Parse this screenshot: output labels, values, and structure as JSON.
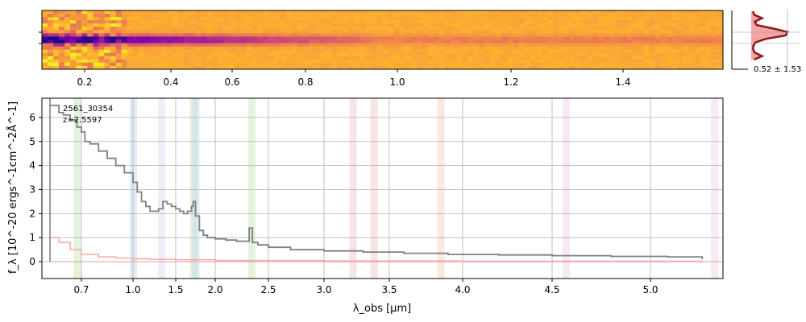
{
  "chart_data": [
    {
      "type": "heatmap",
      "name": "2d-spectrum",
      "colormap": "plasma",
      "x_unit_ticks": [
        "0.2",
        "0.4",
        "0.6",
        "0.8",
        "1.0",
        "1.2",
        "1.4"
      ],
      "x_tick_values": [
        0.2,
        0.4,
        0.6,
        0.8,
        1.0,
        1.2,
        1.4
      ]
    },
    {
      "type": "line",
      "name": "spatial-profile",
      "annotation": "0.52 ± 1.53",
      "fill_color": "#f4a6a6",
      "line_color": "#8b1a1a",
      "profile": [
        0.05,
        0.08,
        0.3,
        0.1,
        0.15,
        0.6,
        1.0,
        0.95,
        0.4,
        0.12,
        0.06,
        0.05,
        0.1,
        0.3,
        0.08
      ]
    },
    {
      "type": "line",
      "name": "1d-spectrum",
      "object_id": "2561_30354",
      "redshift_label": "z=2.5597",
      "xlabel": "λ_obs [μm]",
      "ylabel": "f_λ [10^-20 ergs^-1cm^-2Å^-1]",
      "ylim": [
        -0.7,
        6.8
      ],
      "x_tick_labels": [
        "0.7",
        "1.0",
        "1.5",
        "2.0",
        "2.5",
        "3.0",
        "3.5",
        "4.0",
        "4.5",
        "5.0"
      ],
      "x_tick_values": [
        0.7,
        1.0,
        1.5,
        2.0,
        2.5,
        3.0,
        3.5,
        4.0,
        4.5,
        5.0
      ],
      "y_tick_values": [
        0,
        1,
        2,
        3,
        4,
        5,
        6
      ],
      "y_tick_labels": [
        "0",
        "1",
        "2",
        "3",
        "4",
        "5",
        "6"
      ],
      "grid": true,
      "series": [
        {
          "role": "flux",
          "color": "#808080",
          "x": [
            0.56,
            0.6,
            0.62,
            0.65,
            0.68,
            0.7,
            0.72,
            0.75,
            0.8,
            0.85,
            0.9,
            0.95,
            1.0,
            1.05,
            1.1,
            1.15,
            1.2,
            1.25,
            1.3,
            1.35,
            1.4,
            1.45,
            1.5,
            1.55,
            1.6,
            1.65,
            1.7,
            1.72,
            1.75,
            1.8,
            1.85,
            1.9,
            2.0,
            2.1,
            2.2,
            2.3,
            2.32,
            2.35,
            2.4,
            2.5,
            2.7,
            3.0,
            3.3,
            3.6,
            3.9,
            4.2,
            4.5,
            4.8,
            5.1,
            5.3
          ],
          "y": [
            6.5,
            6.2,
            6.1,
            5.9,
            5.6,
            5.4,
            5.0,
            4.9,
            4.6,
            4.3,
            4.0,
            3.7,
            3.3,
            2.9,
            2.5,
            2.3,
            2.1,
            2.1,
            2.2,
            2.5,
            2.4,
            2.3,
            2.2,
            2.1,
            2.0,
            2.1,
            2.3,
            2.5,
            1.9,
            1.3,
            1.1,
            1.0,
            0.95,
            0.9,
            0.85,
            0.85,
            1.4,
            0.8,
            0.7,
            0.6,
            0.5,
            0.45,
            0.4,
            0.35,
            0.3,
            0.28,
            0.25,
            0.22,
            0.2,
            0.1
          ]
        },
        {
          "role": "error",
          "color": "#f2a3a3",
          "x": [
            0.56,
            0.6,
            0.65,
            0.7,
            0.8,
            0.9,
            1.0,
            1.2,
            1.5,
            2.0,
            3.0,
            4.0,
            5.0,
            5.3
          ],
          "y": [
            1.0,
            0.8,
            0.5,
            0.3,
            0.2,
            0.15,
            0.12,
            0.1,
            0.08,
            0.05,
            0.03,
            0.02,
            0.02,
            0.02
          ]
        }
      ],
      "line_bands": [
        {
          "x": 0.68,
          "color": "#cfe8c0"
        },
        {
          "x": 1.0,
          "color": "#c9dcee"
        },
        {
          "x": 1.33,
          "color": "#e7dcef"
        },
        {
          "x": 1.72,
          "color": "#cfe8c0"
        },
        {
          "x": 1.75,
          "color": "#c9dcee"
        },
        {
          "x": 2.34,
          "color": "#cfe8c0"
        },
        {
          "x": 3.22,
          "color": "#f1cfcf"
        },
        {
          "x": 3.38,
          "color": "#f1cfcf"
        },
        {
          "x": 3.85,
          "color": "#f6d6c8"
        },
        {
          "x": 4.57,
          "color": "#f1d7ee"
        },
        {
          "x": 5.37,
          "color": "#f1d7ee"
        }
      ]
    }
  ]
}
